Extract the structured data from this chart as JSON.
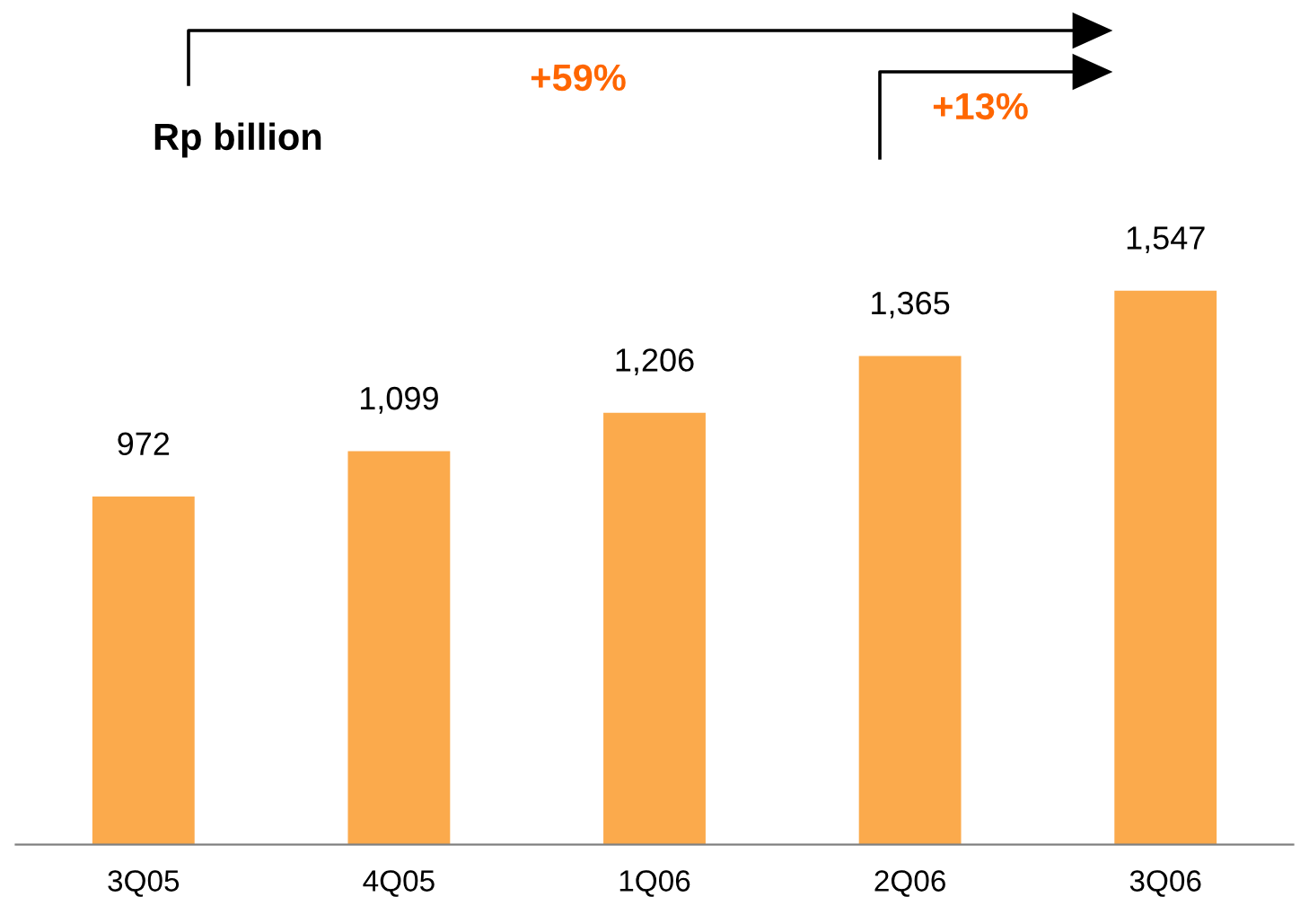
{
  "chart_data": {
    "type": "bar",
    "categories": [
      "3Q05",
      "4Q05",
      "1Q06",
      "2Q06",
      "3Q06"
    ],
    "values": [
      972,
      1099,
      1206,
      1365,
      1547
    ],
    "color": "#fbaa4c",
    "value_labels": [
      "972",
      "1,099",
      "1,206",
      "1,365",
      "1,547"
    ],
    "grid": false,
    "legend": false,
    "tick_labels": "x",
    "annotations": [
      "Rp billion",
      "+59%",
      "+13%"
    ]
  }
}
